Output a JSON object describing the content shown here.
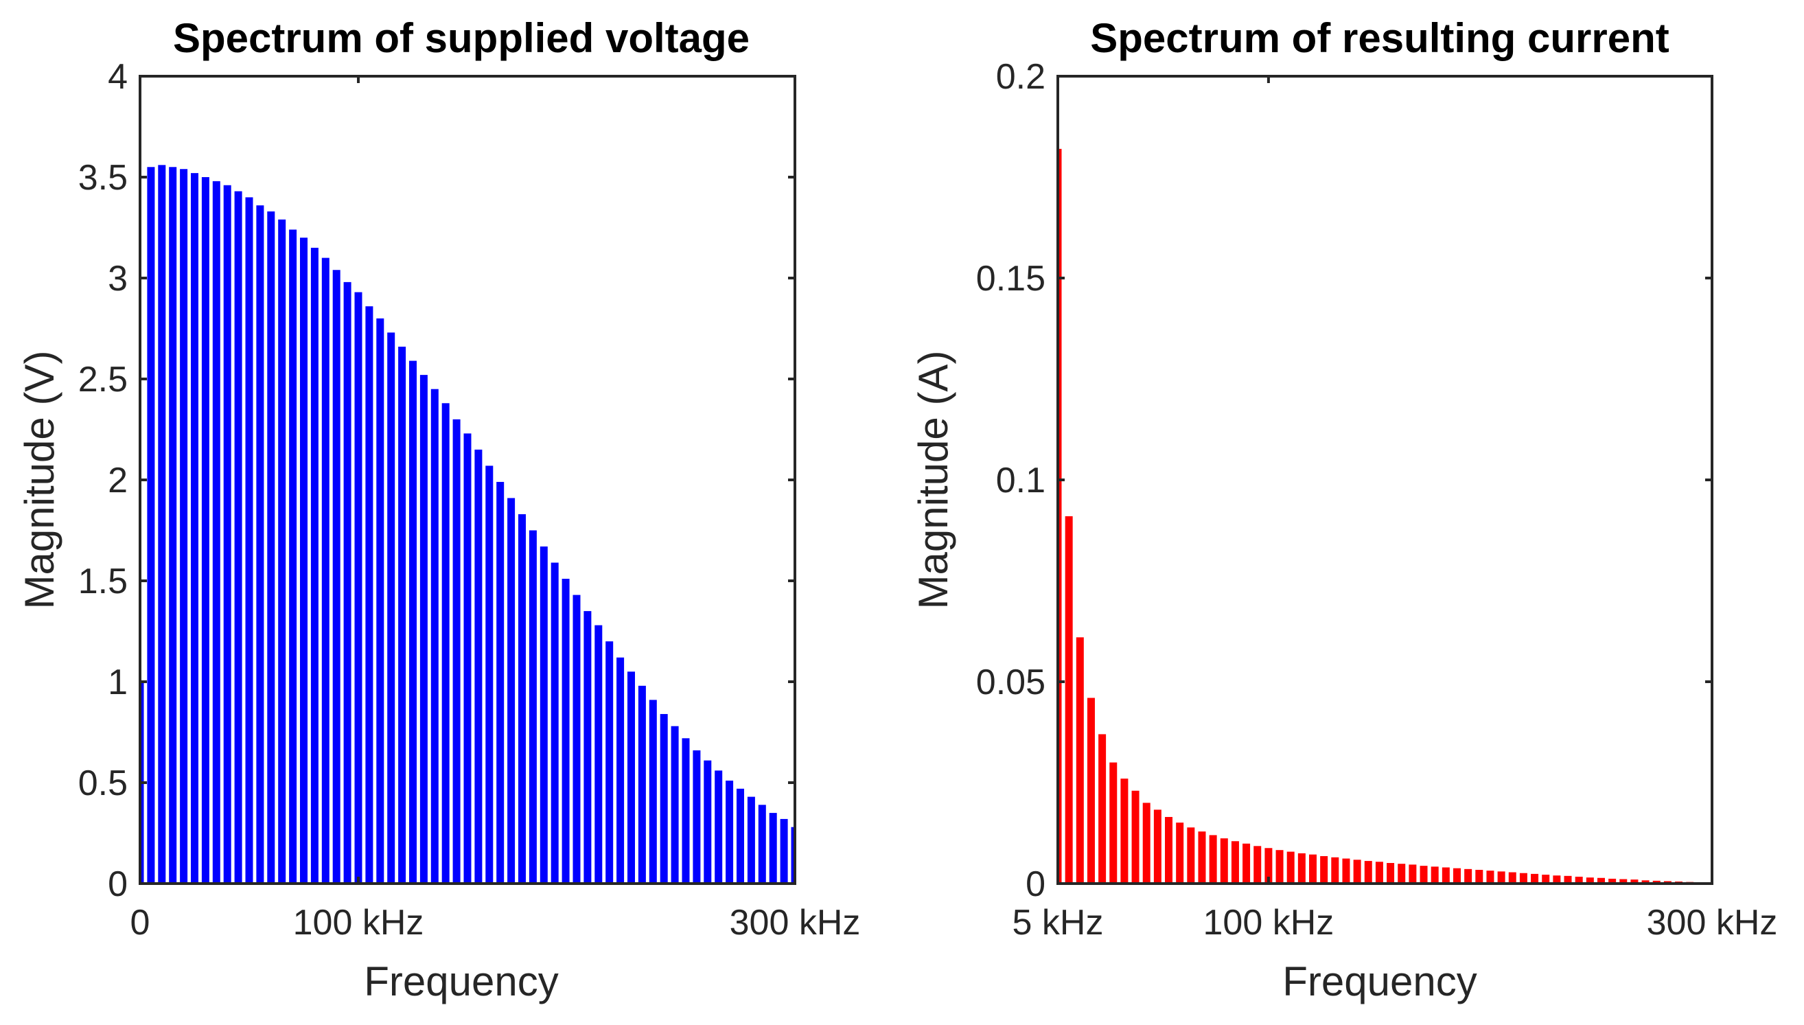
{
  "chart_data": [
    {
      "type": "bar",
      "title": "Spectrum of supplied voltage",
      "xlabel": "Frequency",
      "ylabel": "Magnitude (V)",
      "color": "#0000ff",
      "xlim": [
        0,
        300
      ],
      "ylim": [
        0,
        4
      ],
      "yticks": [
        {
          "value": 0,
          "label": "0"
        },
        {
          "value": 0.5,
          "label": "0.5"
        },
        {
          "value": 1,
          "label": "1"
        },
        {
          "value": 1.5,
          "label": "1.5"
        },
        {
          "value": 2,
          "label": "2"
        },
        {
          "value": 2.5,
          "label": "2.5"
        },
        {
          "value": 3,
          "label": "3"
        },
        {
          "value": 3.5,
          "label": "3.5"
        },
        {
          "value": 4,
          "label": "4"
        }
      ],
      "xticks": [
        {
          "value": 0,
          "label": "0"
        },
        {
          "value": 100,
          "label": "100 kHz"
        },
        {
          "value": 300,
          "label": "300 kHz"
        }
      ],
      "x": [
        0,
        5,
        10,
        15,
        20,
        25,
        30,
        35,
        40,
        45,
        50,
        55,
        60,
        65,
        70,
        75,
        80,
        85,
        90,
        95,
        100,
        105,
        110,
        115,
        120,
        125,
        130,
        135,
        140,
        145,
        150,
        155,
        160,
        165,
        170,
        175,
        180,
        185,
        190,
        195,
        200,
        205,
        210,
        215,
        220,
        225,
        230,
        235,
        240,
        245,
        250,
        255,
        260,
        265,
        270,
        275,
        280,
        285,
        290,
        295,
        300
      ],
      "values": [
        1.0,
        3.55,
        3.56,
        3.55,
        3.54,
        3.52,
        3.5,
        3.48,
        3.46,
        3.43,
        3.4,
        3.36,
        3.33,
        3.29,
        3.24,
        3.2,
        3.15,
        3.1,
        3.04,
        2.98,
        2.93,
        2.86,
        2.8,
        2.73,
        2.66,
        2.59,
        2.52,
        2.45,
        2.38,
        2.3,
        2.23,
        2.15,
        2.07,
        1.99,
        1.91,
        1.83,
        1.75,
        1.67,
        1.59,
        1.51,
        1.43,
        1.35,
        1.28,
        1.2,
        1.12,
        1.05,
        0.98,
        0.91,
        0.84,
        0.78,
        0.72,
        0.66,
        0.61,
        0.56,
        0.51,
        0.47,
        0.43,
        0.39,
        0.35,
        0.32,
        0.28
      ]
    },
    {
      "type": "bar",
      "title": "Spectrum of resulting current",
      "xlabel": "Frequency",
      "ylabel": "Magnitude (A)",
      "color": "#ff0000",
      "xlim": [
        5,
        300
      ],
      "ylim": [
        0,
        0.2
      ],
      "yticks": [
        {
          "value": 0,
          "label": "0"
        },
        {
          "value": 0.05,
          "label": "0.05"
        },
        {
          "value": 0.1,
          "label": "0.1"
        },
        {
          "value": 0.15,
          "label": "0.15"
        },
        {
          "value": 0.2,
          "label": "0.2"
        }
      ],
      "xticks": [
        {
          "value": 5,
          "label": "5 kHz"
        },
        {
          "value": 100,
          "label": "100 kHz"
        },
        {
          "value": 300,
          "label": "300 kHz"
        }
      ],
      "x": [
        5,
        10,
        15,
        20,
        25,
        30,
        35,
        40,
        45,
        50,
        55,
        60,
        65,
        70,
        75,
        80,
        85,
        90,
        95,
        100,
        105,
        110,
        115,
        120,
        125,
        130,
        135,
        140,
        145,
        150,
        155,
        160,
        165,
        170,
        175,
        180,
        185,
        190,
        195,
        200,
        205,
        210,
        215,
        220,
        225,
        230,
        235,
        240,
        245,
        250,
        255,
        260,
        265,
        270,
        275,
        280,
        285,
        290,
        295,
        300
      ],
      "values": [
        0.182,
        0.091,
        0.061,
        0.046,
        0.037,
        0.03,
        0.026,
        0.023,
        0.02,
        0.0183,
        0.0165,
        0.0151,
        0.0139,
        0.0129,
        0.012,
        0.0112,
        0.0105,
        0.0099,
        0.0093,
        0.0088,
        0.0083,
        0.0079,
        0.0075,
        0.0072,
        0.0068,
        0.0065,
        0.0062,
        0.0059,
        0.0056,
        0.0054,
        0.0051,
        0.0049,
        0.0047,
        0.0044,
        0.0042,
        0.004,
        0.0038,
        0.0036,
        0.0034,
        0.0032,
        0.003,
        0.0028,
        0.0026,
        0.0024,
        0.0022,
        0.002,
        0.0019,
        0.0017,
        0.0015,
        0.0014,
        0.0012,
        0.0011,
        0.001,
        0.0008,
        0.0007,
        0.0006,
        0.0005,
        0.0004,
        0.0003,
        0.0002
      ]
    }
  ]
}
